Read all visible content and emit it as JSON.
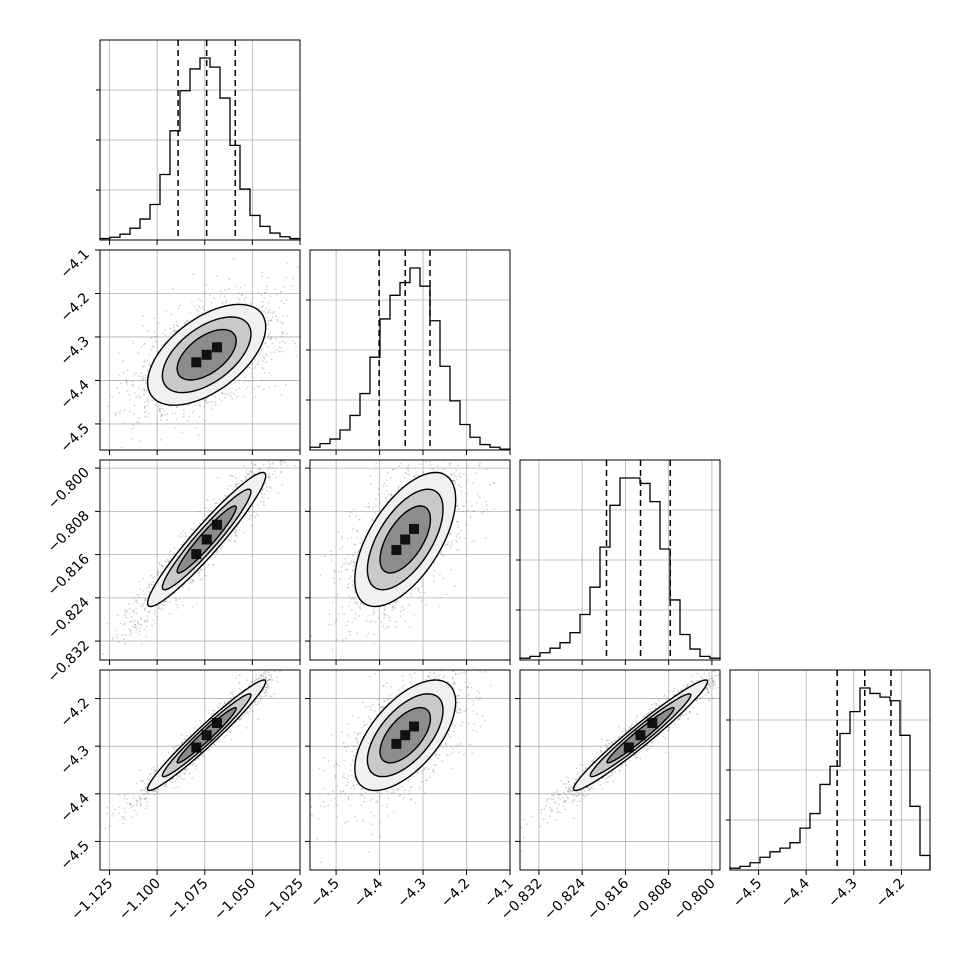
{
  "chart_data": {
    "type": "corner",
    "n_params": 4,
    "grid": true,
    "params": [
      {
        "index": 0,
        "range": [
          -1.13,
          -1.025
        ],
        "ticks": [
          -1.125,
          -1.1,
          -1.075,
          -1.05,
          -1.025
        ],
        "tick_labels": [
          "−1.125",
          "−1.100",
          "−1.075",
          "−1.050",
          "−1.025"
        ],
        "quantiles": [
          -1.089,
          -1.074,
          -1.059
        ]
      },
      {
        "index": 1,
        "range": [
          -4.56,
          -4.1
        ],
        "ticks": [
          -4.5,
          -4.4,
          -4.3,
          -4.2,
          -4.1
        ],
        "tick_labels": [
          "−4.5",
          "−4.4",
          "−4.3",
          "−4.2",
          "−4.1"
        ],
        "quantiles": [
          -4.401,
          -4.341,
          -4.284
        ]
      },
      {
        "index": 2,
        "range": [
          -0.8355,
          -0.7985
        ],
        "ticks": [
          -0.832,
          -0.824,
          -0.816,
          -0.808,
          -0.8
        ],
        "tick_labels": [
          "−0.832",
          "−0.824",
          "−0.816",
          "−0.808",
          "−0.800"
        ],
        "quantiles": [
          -0.8195,
          -0.8132,
          -0.8077
        ]
      },
      {
        "index": 3,
        "range": [
          -4.56,
          -4.14
        ],
        "ticks": [
          -4.5,
          -4.4,
          -4.3,
          -4.2
        ],
        "tick_labels": [
          "−4.5",
          "−4.4",
          "−4.3",
          "−4.2"
        ],
        "quantiles": [
          -4.335,
          -4.277,
          -4.222
        ]
      }
    ],
    "histograms": [
      {
        "param": 0,
        "bin_edges": [
          -1.13,
          -1.12475,
          -1.1195,
          -1.11425,
          -1.109,
          -1.10375,
          -1.0985,
          -1.09325,
          -1.088,
          -1.08275,
          -1.0775,
          -1.07225,
          -1.067,
          -1.06175,
          -1.0565,
          -1.05125,
          -1.046,
          -1.04075,
          -1.0355,
          -1.03025,
          -1.025
        ],
        "counts": [
          0.8,
          1.5,
          3.2,
          6.5,
          11.5,
          19.5,
          36,
          60,
          82,
          94,
          100,
          95,
          78,
          52,
          28,
          13.5,
          7.5,
          3.8,
          1.8,
          0.8
        ]
      },
      {
        "param": 1,
        "bin_edges": [
          -4.56,
          -4.537,
          -4.514,
          -4.491,
          -4.468,
          -4.445,
          -4.422,
          -4.399,
          -4.376,
          -4.353,
          -4.33,
          -4.307,
          -4.284,
          -4.261,
          -4.238,
          -4.215,
          -4.192,
          -4.169,
          -4.146,
          -4.123,
          -4.1
        ],
        "counts": [
          1.5,
          3.5,
          6,
          11,
          19,
          31,
          51,
          72,
          85,
          92,
          100,
          90,
          71,
          46,
          27,
          14,
          7,
          3,
          1.5,
          0.5
        ]
      },
      {
        "param": 2,
        "bin_edges": [
          -0.8355,
          -0.83365,
          -0.8318,
          -0.82995,
          -0.8281,
          -0.82625,
          -0.8244,
          -0.82255,
          -0.8207,
          -0.81885,
          -0.817,
          -0.81515,
          -0.8133,
          -0.81145,
          -0.8096,
          -0.80775,
          -0.8059,
          -0.80405,
          -0.8022,
          -0.80035,
          -0.7985
        ],
        "counts": [
          1,
          2,
          4,
          6.5,
          9.5,
          15,
          25,
          40,
          62,
          85,
          100,
          100,
          97,
          87,
          61,
          33,
          14,
          6,
          2,
          1
        ]
      },
      {
        "param": 3,
        "bin_edges": [
          -4.56,
          -4.539,
          -4.518,
          -4.497,
          -4.476,
          -4.455,
          -4.434,
          -4.413,
          -4.392,
          -4.371,
          -4.35,
          -4.329,
          -4.308,
          -4.287,
          -4.266,
          -4.245,
          -4.224,
          -4.203,
          -4.182,
          -4.161,
          -4.14
        ],
        "counts": [
          1,
          2,
          4,
          7,
          10,
          12,
          15,
          23,
          31,
          47,
          57,
          75,
          87,
          100,
          97,
          95,
          93,
          74,
          35,
          8
        ]
      }
    ],
    "pairs": [
      {
        "x_param": 0,
        "y_param": 1,
        "center": [
          -1.074,
          -4.341
        ],
        "sigma": [
          0.0155,
          0.058
        ],
        "rho": 0.55
      },
      {
        "x_param": 0,
        "y_param": 2,
        "center": [
          -1.074,
          -0.8132
        ],
        "sigma": [
          0.0155,
          0.0062
        ],
        "rho": 0.95
      },
      {
        "x_param": 1,
        "y_param": 2,
        "center": [
          -4.341,
          -0.8132
        ],
        "sigma": [
          0.058,
          0.0062
        ],
        "rho": 0.6
      },
      {
        "x_param": 0,
        "y_param": 3,
        "center": [
          -1.074,
          -4.277
        ],
        "sigma": [
          0.0155,
          0.058
        ],
        "rho": 0.97
      },
      {
        "x_param": 1,
        "y_param": 3,
        "center": [
          -4.341,
          -4.277
        ],
        "sigma": [
          0.058,
          0.058
        ],
        "rho": 0.6
      },
      {
        "x_param": 2,
        "y_param": 3,
        "center": [
          -0.8132,
          -4.277
        ],
        "sigma": [
          0.0062,
          0.058
        ],
        "rho": 0.97
      }
    ],
    "contour_levels_sigma": [
      0.5,
      1.0,
      1.5,
      2.0
    ]
  }
}
